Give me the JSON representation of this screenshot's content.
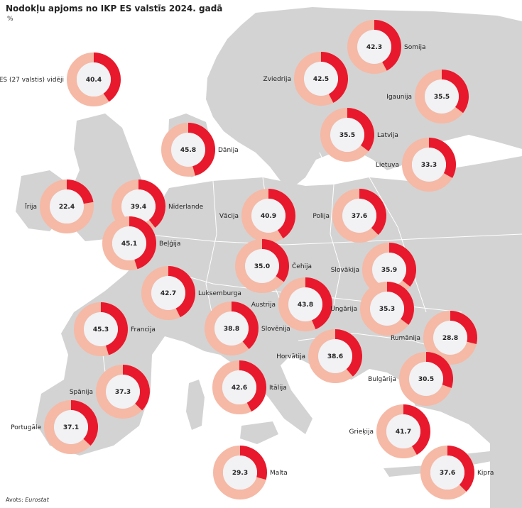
{
  "header": {
    "title": "Nodokļu apjoms no IKP ES valstīs 2024. gadā",
    "unit": "%"
  },
  "footer": {
    "source_label": "Avots: ",
    "source_value": "Eurostat"
  },
  "colors": {
    "water": "#ffffff",
    "land": "#d3d3d3",
    "ring_share": "#e8192c",
    "ring_rest": "#f5b9a6",
    "center": "#f2f1f4"
  },
  "chart_data": {
    "type": "donut-map",
    "scale_max": 100,
    "countries": [
      {
        "id": "es27",
        "name": "ES (27 valstis) vidēji",
        "value": 40.4,
        "value_label": "40.4",
        "label_side": "left"
      },
      {
        "id": "somija",
        "name": "Somija",
        "value": 42.3,
        "value_label": "42.3",
        "label_side": "right"
      },
      {
        "id": "zviedrija",
        "name": "Zviedrija",
        "value": 42.5,
        "value_label": "42.5",
        "label_side": "left"
      },
      {
        "id": "igaunija",
        "name": "Igaunija",
        "value": 35.5,
        "value_label": "35.5",
        "label_side": "left"
      },
      {
        "id": "latvija",
        "name": "Latvija",
        "value": 35.5,
        "value_label": "35.5",
        "label_side": "right"
      },
      {
        "id": "lietuva",
        "name": "Lietuva",
        "value": 33.3,
        "value_label": "33.3",
        "label_side": "left"
      },
      {
        "id": "danija",
        "name": "Dānija",
        "value": 45.8,
        "value_label": "45.8",
        "label_side": "right"
      },
      {
        "id": "irija",
        "name": "Īrija",
        "value": 22.4,
        "value_label": "22.4",
        "label_side": "left"
      },
      {
        "id": "niderlande",
        "name": "Nīderlande",
        "value": 39.4,
        "value_label": "39.4",
        "label_side": "right"
      },
      {
        "id": "vacija",
        "name": "Vācija",
        "value": 40.9,
        "value_label": "40.9",
        "label_side": "left"
      },
      {
        "id": "polija",
        "name": "Polija",
        "value": 37.6,
        "value_label": "37.6",
        "label_side": "left"
      },
      {
        "id": "belgija",
        "name": "Beļģija",
        "value": 45.1,
        "value_label": "45.1",
        "label_side": "right"
      },
      {
        "id": "cehija",
        "name": "Čehija",
        "value": 35.0,
        "value_label": "35.0",
        "label_side": "right"
      },
      {
        "id": "slovakija",
        "name": "Slovākija",
        "value": 35.9,
        "value_label": "35.9",
        "label_side": "left"
      },
      {
        "id": "luksemburga",
        "name": "Luksemburga",
        "value": 42.7,
        "value_label": "42.7",
        "label_side": "right"
      },
      {
        "id": "austrija",
        "name": "Austrija",
        "value": 43.8,
        "value_label": "43.8",
        "label_side": "left"
      },
      {
        "id": "ungarija",
        "name": "Ungārija",
        "value": 35.3,
        "value_label": "35.3",
        "label_side": "left"
      },
      {
        "id": "francija",
        "name": "Francija",
        "value": 45.3,
        "value_label": "45.3",
        "label_side": "right"
      },
      {
        "id": "slovenija",
        "name": "Slovēnija",
        "value": 38.8,
        "value_label": "38.8",
        "label_side": "right"
      },
      {
        "id": "rumanija",
        "name": "Rumānija",
        "value": 28.8,
        "value_label": "28.8",
        "label_side": "left"
      },
      {
        "id": "horvatija",
        "name": "Horvātija",
        "value": 38.6,
        "value_label": "38.6",
        "label_side": "left"
      },
      {
        "id": "bulgarija",
        "name": "Bulgārija",
        "value": 30.5,
        "value_label": "30.5",
        "label_side": "left"
      },
      {
        "id": "spanija",
        "name": "Spānija",
        "value": 37.3,
        "value_label": "37.3",
        "label_side": "left"
      },
      {
        "id": "italija",
        "name": "Itālija",
        "value": 42.6,
        "value_label": "42.6",
        "label_side": "right"
      },
      {
        "id": "portugale",
        "name": "Portugāle",
        "value": 37.1,
        "value_label": "37.1",
        "label_side": "left"
      },
      {
        "id": "griekija",
        "name": "Grieķija",
        "value": 41.7,
        "value_label": "41.7",
        "label_side": "left"
      },
      {
        "id": "malta",
        "name": "Malta",
        "value": 29.3,
        "value_label": "29.3",
        "label_side": "right"
      },
      {
        "id": "kipra",
        "name": "Kipra",
        "value": 37.6,
        "value_label": "37.6",
        "label_side": "right"
      }
    ]
  }
}
